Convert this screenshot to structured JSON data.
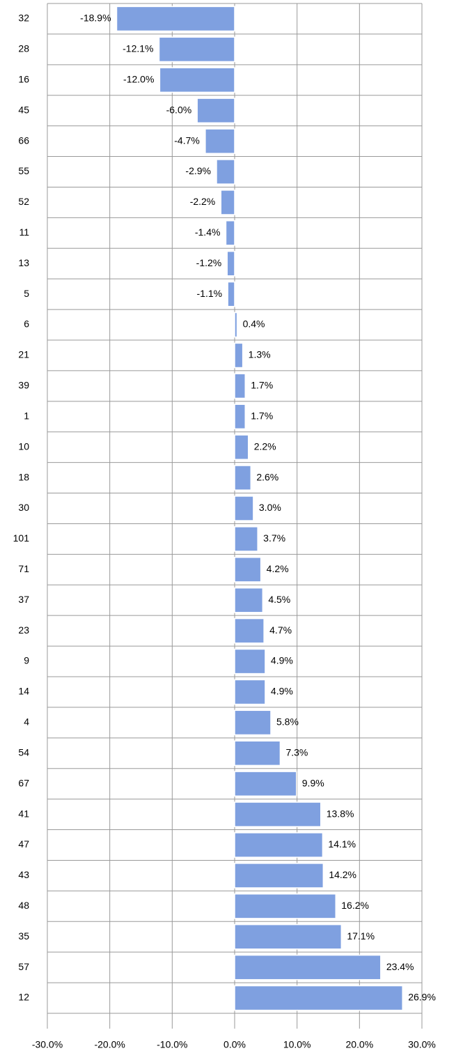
{
  "chart_data": {
    "type": "bar",
    "orientation": "horizontal",
    "categories": [
      "32",
      "28",
      "16",
      "45",
      "66",
      "55",
      "52",
      "11",
      "13",
      "5",
      "6",
      "21",
      "39",
      "1",
      "10",
      "18",
      "30",
      "101",
      "71",
      "37",
      "23",
      "9",
      "14",
      "4",
      "54",
      "67",
      "41",
      "47",
      "43",
      "48",
      "35",
      "57",
      "12"
    ],
    "values": [
      -18.9,
      -12.1,
      -12.0,
      -6.0,
      -4.7,
      -2.9,
      -2.2,
      -1.4,
      -1.2,
      -1.1,
      0.4,
      1.3,
      1.7,
      1.7,
      2.2,
      2.6,
      3.0,
      3.7,
      4.2,
      4.5,
      4.7,
      4.9,
      4.9,
      5.8,
      7.3,
      9.9,
      13.8,
      14.1,
      14.2,
      16.2,
      17.1,
      23.4,
      26.9
    ],
    "value_labels": [
      "-18.9%",
      "-12.1%",
      "-12.0%",
      "-6.0%",
      "-4.7%",
      "-2.9%",
      "-2.2%",
      "-1.4%",
      "-1.2%",
      "-1.1%",
      "0.4%",
      "1.3%",
      "1.7%",
      "1.7%",
      "2.2%",
      "2.6%",
      "3.0%",
      "3.7%",
      "4.2%",
      "4.5%",
      "4.7%",
      "4.9%",
      "4.9%",
      "5.8%",
      "7.3%",
      "9.9%",
      "13.8%",
      "14.1%",
      "14.2%",
      "16.2%",
      "17.1%",
      "23.4%",
      "26.9%"
    ],
    "color": "#7fa0e0",
    "xlim": [
      -30,
      30
    ],
    "xticks": [
      {
        "value": -30,
        "label": "-30.0%"
      },
      {
        "value": -20,
        "label": "-20.0%"
      },
      {
        "value": -10,
        "label": "-10.0%"
      },
      {
        "value": 0,
        "label": "0.0%"
      },
      {
        "value": 10,
        "label": "10.0%"
      },
      {
        "value": 20,
        "label": "20.0%"
      },
      {
        "value": 30,
        "label": "30.0%"
      }
    ],
    "grid": true
  }
}
